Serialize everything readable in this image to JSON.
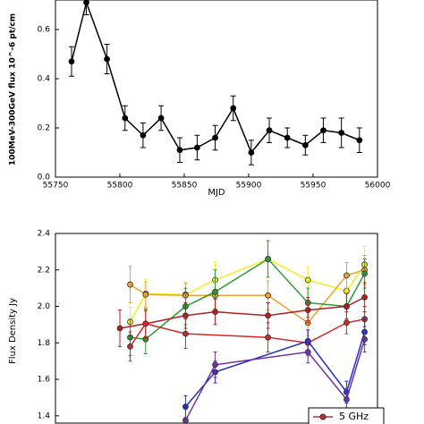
{
  "chart_data": [
    {
      "type": "line",
      "xlabel": "MJD",
      "ylabel": "100MeV-300GeV flux 10^-6 pt/cm",
      "x": [
        55762.5,
        55774,
        55790,
        55804,
        55818,
        55832,
        55846.5,
        55860,
        55874,
        55888,
        55902,
        55916,
        55930,
        55944,
        55958,
        55972,
        55986
      ],
      "values": [
        0.47,
        0.71,
        0.48,
        0.24,
        0.17,
        0.24,
        0.11,
        0.12,
        0.16,
        0.28,
        0.1,
        0.19,
        0.16,
        0.13,
        0.19,
        0.18,
        0.15
      ],
      "errors": [
        0.06,
        0.05,
        0.06,
        0.05,
        0.05,
        0.05,
        0.05,
        0.05,
        0.05,
        0.05,
        0.05,
        0.05,
        0.04,
        0.04,
        0.05,
        0.06,
        0.05
      ],
      "color": "#000000",
      "xlim": [
        55750,
        56000
      ],
      "xticks": [
        55750,
        55800,
        55850,
        55900,
        55950,
        56000
      ],
      "ylim": [
        0,
        0.72
      ],
      "yticks": [
        {
          "value": 0,
          "label": "0.0"
        },
        0.2,
        0.4,
        0.6
      ]
    },
    {
      "type": "line",
      "ylabel": "Flux Density Jy",
      "xlim": [
        55750,
        56000
      ],
      "ylim": [
        1.36,
        2.4
      ],
      "yticks": [
        1.4,
        1.6,
        1.8,
        {
          "value": 2,
          "label": "2.0"
        },
        2.2,
        2.4
      ],
      "legend": "lower right",
      "series": [
        {
          "color": "#f0f020",
          "x": [
            55808,
            55820,
            55851,
            55874,
            55915,
            55946,
            55976,
            55990
          ],
          "values": [
            1.915,
            2.07,
            2.065,
            2.145,
            2.26,
            2.145,
            2.085,
            2.23
          ],
          "errors": [
            0.08,
            0.08,
            0.06,
            0.1,
            0.1,
            0.07,
            0.07,
            0.1
          ]
        },
        {
          "color": "#f0a030",
          "x": [
            55808,
            55820,
            55851,
            55874,
            55915,
            55946,
            55976,
            55990
          ],
          "values": [
            2.12,
            2.065,
            2.06,
            2.06,
            2.06,
            1.91,
            2.17,
            2.2
          ],
          "errors": [
            0.1,
            0.07,
            0.07,
            0.07,
            0.08,
            0.07,
            0.07,
            0.08
          ]
        },
        {
          "color": "#2a9a2a",
          "x": [
            55808,
            55820,
            55851,
            55874,
            55915,
            55946,
            55976,
            55990
          ],
          "values": [
            1.83,
            1.82,
            2.0,
            2.08,
            2.26,
            2.02,
            2.0,
            2.18
          ],
          "errors": [
            0.1,
            0.08,
            0.1,
            0.12,
            0.1,
            0.08,
            0.07,
            0.08
          ]
        },
        {
          "color": "#b02020",
          "x": [
            55800,
            55820,
            55851,
            55874,
            55915,
            55946,
            55976,
            55990
          ],
          "values": [
            1.88,
            1.905,
            1.95,
            1.97,
            1.95,
            1.98,
            2.0,
            2.05
          ],
          "errors": [
            0.1,
            0.08,
            0.07,
            0.07,
            0.07,
            0.07,
            0.07,
            0.08
          ]
        },
        {
          "name": "5 GHz",
          "color": "#d02828",
          "x": [
            55808,
            55820,
            55851,
            55915,
            55946,
            55976,
            55990
          ],
          "values": [
            1.78,
            1.905,
            1.85,
            1.83,
            1.8,
            1.91,
            1.93
          ],
          "errors": [
            0.08,
            0.07,
            0.08,
            0.08,
            0.07,
            0.06,
            0.07
          ]
        },
        {
          "color": "#2030c0",
          "x": [
            55851,
            55874,
            55946,
            55976,
            55990
          ],
          "values": [
            1.45,
            1.64,
            1.81,
            1.53,
            1.86
          ],
          "errors": [
            0.06,
            0.06,
            0.06,
            0.06,
            0.07
          ]
        },
        {
          "color": "#7030a0",
          "x": [
            55851,
            55874,
            55946,
            55976,
            55990
          ],
          "values": [
            1.375,
            1.68,
            1.75,
            1.49,
            1.82
          ],
          "errors": [
            0.06,
            0.07,
            0.06,
            0.06,
            0.07
          ]
        }
      ]
    }
  ]
}
